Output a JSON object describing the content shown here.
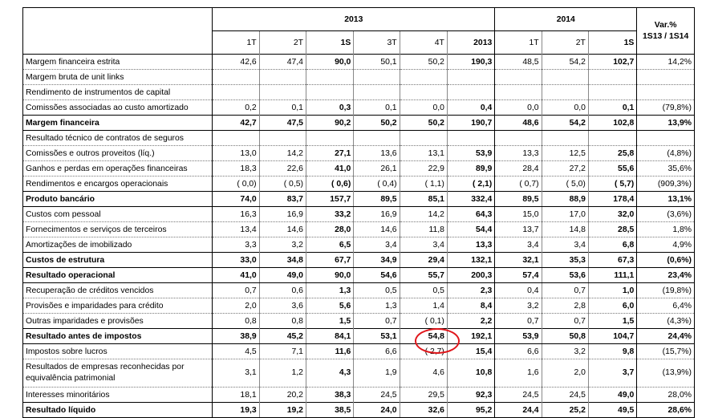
{
  "header": {
    "year1": "2013",
    "year2": "2014",
    "var_title": "Var.%",
    "var_sub": "1S13 / 1S14",
    "cols": [
      "1T",
      "2T",
      "1S",
      "3T",
      "4T",
      "2013",
      "1T",
      "2T",
      "1S"
    ]
  },
  "rows": [
    {
      "label": "Margem financeira estrita",
      "v": [
        "42,6",
        "47,4",
        "90,0",
        "50,1",
        "50,2",
        "190,3",
        "48,5",
        "54,2",
        "102,7",
        "14,2%"
      ]
    },
    {
      "label": "Margem bruta de unit links",
      "v": [
        "",
        "",
        "",
        "",
        "",
        "",
        "",
        "",
        "",
        ""
      ]
    },
    {
      "label": "Rendimento de instrumentos de capital",
      "v": [
        "",
        "",
        "",
        "",
        "",
        "",
        "",
        "",
        "",
        ""
      ]
    },
    {
      "label": "Comissões associadas ao custo amortizado",
      "v": [
        "0,2",
        "0,1",
        "0,3",
        "0,1",
        "0,0",
        "0,4",
        "0,0",
        "0,0",
        "0,1",
        "(79,8%)"
      ]
    },
    {
      "label": "Margem financeira",
      "v": [
        "42,7",
        "47,5",
        "90,2",
        "50,2",
        "50,2",
        "190,7",
        "48,6",
        "54,2",
        "102,8",
        "13,9%"
      ]
    },
    {
      "label": "Resultado técnico de contratos de seguros",
      "v": [
        "",
        "",
        "",
        "",
        "",
        "",
        "",
        "",
        "",
        ""
      ]
    },
    {
      "label": "Comissões e outros proveitos (líq.)",
      "v": [
        "13,0",
        "14,2",
        "27,1",
        "13,6",
        "13,1",
        "53,9",
        "13,3",
        "12,5",
        "25,8",
        "(4,8%)"
      ]
    },
    {
      "label": "Ganhos e perdas em operações financeiras",
      "v": [
        "18,3",
        "22,6",
        "41,0",
        "26,1",
        "22,9",
        "89,9",
        "28,4",
        "27,2",
        "55,6",
        "35,6%"
      ]
    },
    {
      "label": "Rendimentos e encargos operacionais",
      "v": [
        "( 0,0)",
        "( 0,5)",
        "( 0,6)",
        "( 0,4)",
        "( 1,1)",
        "( 2,1)",
        "( 0,7)",
        "( 5,0)",
        "( 5,7)",
        "(909,3%)"
      ]
    },
    {
      "label": "Produto bancário",
      "v": [
        "74,0",
        "83,7",
        "157,7",
        "89,5",
        "85,1",
        "332,4",
        "89,5",
        "88,9",
        "178,4",
        "13,1%"
      ]
    },
    {
      "label": "Custos com pessoal",
      "v": [
        "16,3",
        "16,9",
        "33,2",
        "16,9",
        "14,2",
        "64,3",
        "15,0",
        "17,0",
        "32,0",
        "(3,6%)"
      ]
    },
    {
      "label": "Fornecimentos e serviços de terceiros",
      "v": [
        "13,4",
        "14,6",
        "28,0",
        "14,6",
        "11,8",
        "54,4",
        "13,7",
        "14,8",
        "28,5",
        "1,8%"
      ]
    },
    {
      "label": "Amortizações de imobilizado",
      "v": [
        "3,3",
        "3,2",
        "6,5",
        "3,4",
        "3,4",
        "13,3",
        "3,4",
        "3,4",
        "6,8",
        "4,9%"
      ]
    },
    {
      "label": "Custos de estrutura",
      "v": [
        "33,0",
        "34,8",
        "67,7",
        "34,9",
        "29,4",
        "132,1",
        "32,1",
        "35,3",
        "67,3",
        "(0,6%)"
      ]
    },
    {
      "label": "Resultado operacional",
      "v": [
        "41,0",
        "49,0",
        "90,0",
        "54,6",
        "55,7",
        "200,3",
        "57,4",
        "53,6",
        "111,1",
        "23,4%"
      ]
    },
    {
      "label": "Recuperação de créditos vencidos",
      "v": [
        "0,7",
        "0,6",
        "1,3",
        "0,5",
        "0,5",
        "2,3",
        "0,4",
        "0,7",
        "1,0",
        "(19,8%)"
      ]
    },
    {
      "label": "Provisões e imparidades para crédito",
      "v": [
        "2,0",
        "3,6",
        "5,6",
        "1,3",
        "1,4",
        "8,4",
        "3,2",
        "2,8",
        "6,0",
        "6,4%"
      ]
    },
    {
      "label": "Outras imparidades e provisões",
      "v": [
        "0,8",
        "0,8",
        "1,5",
        "0,7",
        "( 0,1)",
        "2,2",
        "0,7",
        "0,7",
        "1,5",
        "(4,3%)"
      ]
    },
    {
      "label": "Resultado antes de impostos",
      "v": [
        "38,9",
        "45,2",
        "84,1",
        "53,1",
        "54,8",
        "192,1",
        "53,9",
        "50,8",
        "104,7",
        "24,4%"
      ]
    },
    {
      "label": "Impostos sobre lucros",
      "v": [
        "4,5",
        "7,1",
        "11,6",
        "6,6",
        "( 2,7)",
        "15,4",
        "6,6",
        "3,2",
        "9,8",
        "(15,7%)"
      ]
    },
    {
      "label": "Resultados de empresas reconhecidas por equivalência patrimonial",
      "v": [
        "3,1",
        "1,2",
        "4,3",
        "1,9",
        "4,6",
        "10,8",
        "1,6",
        "2,0",
        "3,7",
        "(13,9%)"
      ]
    },
    {
      "label": "Interesses minoritários",
      "v": [
        "18,1",
        "20,2",
        "38,3",
        "24,5",
        "29,5",
        "92,3",
        "24,5",
        "24,5",
        "49,0",
        "28,0%"
      ]
    },
    {
      "label": "Resultado líquido",
      "v": [
        "19,3",
        "19,2",
        "38,5",
        "24,0",
        "32,6",
        "95,2",
        "24,4",
        "25,2",
        "49,5",
        "28,6%"
      ]
    }
  ]
}
